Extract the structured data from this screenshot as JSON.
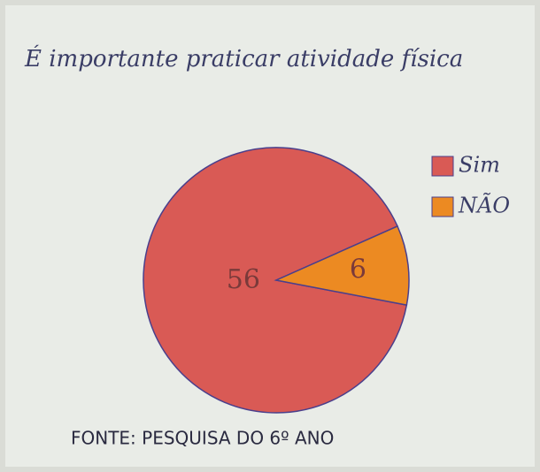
{
  "chart_data": {
    "type": "pie",
    "title": "É importante praticar atividade física",
    "categories": [
      "Sim",
      "NÃO"
    ],
    "values": [
      56,
      6
    ],
    "colors": [
      "#d95a55",
      "#ec8a22"
    ],
    "source": "FONTE: PESQUISA DO 6º ANO"
  }
}
